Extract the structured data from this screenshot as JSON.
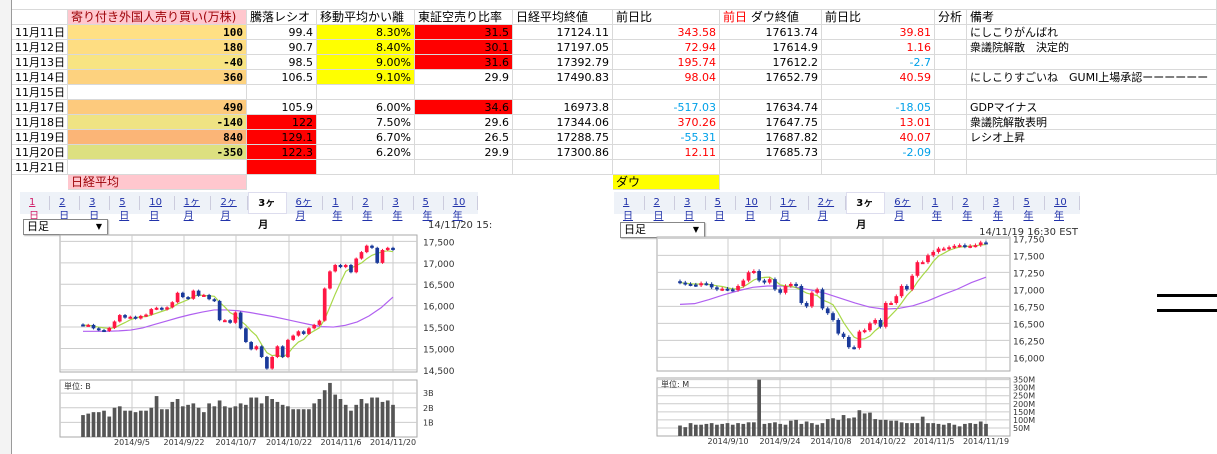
{
  "colors": {
    "pos": "#ff0000",
    "neg": "#00a0e8",
    "pink": "#ffc7ce",
    "pink_text": "#9c0006",
    "yellow": "#ffff00",
    "red": "#ff0000",
    "up_candle": "#ff1744",
    "down_candle": "#1a3a9a",
    "ma_short": "#a8d848",
    "ma_long": "#b060f0",
    "volume": "#555555"
  },
  "headers": {
    "foreign": "寄り付き外国人売り買い(万株)",
    "ratio": "騰落レシオ",
    "ma_dev": "移動平均かい離",
    "short_ratio": "東証空売り比率",
    "nikkei": "日経平均終値",
    "nikkei_chg": "前日比",
    "dow_prefix": "前日",
    "dow": "ダウ終値",
    "dow_chg": "前日比",
    "analysis": "分析",
    "note": "備考"
  },
  "rows": [
    {
      "date": "11月11日",
      "foreign": "100",
      "ratio": "99.4",
      "ma_dev": "8.30%",
      "short_ratio": "31.5",
      "nikkei": "17124.11",
      "nikkei_chg": "343.58",
      "dow": "17613.74",
      "dow_chg": "39.81",
      "note": "にしこりがんばれ",
      "bg": {
        "foreign": "#ffe084",
        "ma_dev": "#ffff00",
        "short_ratio": "#ff0000"
      }
    },
    {
      "date": "11月12日",
      "foreign": "180",
      "ratio": "90.7",
      "ma_dev": "8.40%",
      "short_ratio": "30.1",
      "nikkei": "17197.05",
      "nikkei_chg": "72.94",
      "dow": "17614.9",
      "dow_chg": "1.16",
      "note": "衆議院解散　決定的",
      "bg": {
        "foreign": "#fedd82",
        "ma_dev": "#ffff00",
        "short_ratio": "#ff0000"
      }
    },
    {
      "date": "11月13日",
      "foreign": "-40",
      "ratio": "98.5",
      "ma_dev": "9.00%",
      "short_ratio": "31.6",
      "nikkei": "17392.79",
      "nikkei_chg": "195.74",
      "dow": "17612.2",
      "dow_chg": "-2.7",
      "note": "",
      "bg": {
        "foreign": "#f8e482",
        "ma_dev": "#ffff00",
        "short_ratio": "#ff0000"
      }
    },
    {
      "date": "11月14日",
      "foreign": "360",
      "ratio": "106.5",
      "ma_dev": "9.10%",
      "short_ratio": "29.9",
      "nikkei": "17490.83",
      "nikkei_chg": "98.04",
      "dow": "17652.79",
      "dow_chg": "40.59",
      "note": "にしこりすごいね　GUMI上場承認ーーーーーー",
      "bg": {
        "foreign": "#fdd27f",
        "ma_dev": "#ffff00"
      }
    },
    {
      "date": "11月15日",
      "foreign": "",
      "ratio": "",
      "ma_dev": "",
      "short_ratio": "",
      "nikkei": "",
      "nikkei_chg": "",
      "dow": "",
      "dow_chg": "",
      "note": "",
      "bg": {}
    },
    {
      "date": "11月17日",
      "foreign": "490",
      "ratio": "105.9",
      "ma_dev": "6.00%",
      "short_ratio": "34.6",
      "nikkei": "16973.8",
      "nikkei_chg": "-517.03",
      "dow": "17634.74",
      "dow_chg": "-18.05",
      "note": "GDPマイナス",
      "bg": {
        "foreign": "#fdca7d",
        "short_ratio": "#ff0000"
      }
    },
    {
      "date": "11月18日",
      "foreign": "-140",
      "ratio": "122",
      "ma_dev": "7.50%",
      "short_ratio": "29.6",
      "nikkei": "17344.06",
      "nikkei_chg": "370.26",
      "dow": "17647.75",
      "dow_chg": "13.01",
      "note": "衆議院解散表明",
      "bg": {
        "foreign": "#efe383",
        "ratio": "#ff0000"
      }
    },
    {
      "date": "11月19日",
      "foreign": "840",
      "ratio": "129.1",
      "ma_dev": "6.70%",
      "short_ratio": "26.5",
      "nikkei": "17288.75",
      "nikkei_chg": "-55.31",
      "dow": "17687.82",
      "dow_chg": "40.07",
      "note": "レシオ上昇",
      "bg": {
        "foreign": "#fbb577",
        "ratio": "#ff0000"
      }
    },
    {
      "date": "11月20日",
      "foreign": "-350",
      "ratio": "122.3",
      "ma_dev": "6.20%",
      "short_ratio": "29.9",
      "nikkei": "17300.86",
      "nikkei_chg": "12.11",
      "dow": "17685.73",
      "dow_chg": "-2.09",
      "note": "",
      "bg": {
        "foreign": "#dde080",
        "ratio": "#ff0000"
      }
    },
    {
      "date": "11月21日",
      "foreign": "",
      "ratio": "",
      "ma_dev": "",
      "short_ratio": "",
      "nikkei": "",
      "nikkei_chg": "",
      "dow": "",
      "dow_chg": "",
      "note": "",
      "bg": {
        "ratio": "#ff0000"
      }
    }
  ],
  "section_labels": {
    "nikkei": "日経平均",
    "dow": "ダウ"
  },
  "period_tabs": [
    "1日",
    "2日",
    "3日",
    "5日",
    "10日",
    "1ヶ月",
    "2ヶ月",
    "3ヶ月",
    "6ヶ月",
    "1年",
    "2年",
    "3年",
    "5年",
    "10年"
  ],
  "active_tab": "3ヶ月",
  "chart_data": [
    {
      "type": "candlestick",
      "name": "nikkei",
      "select_value": "日足",
      "timestamp": "14/11/20 15:",
      "volume_unit_label": "単位: B",
      "y_ticks": [
        "17,500",
        "17,000",
        "16,500",
        "16,000",
        "15,500",
        "15,000",
        "14,500"
      ],
      "y_tick_values": [
        17500,
        17000,
        16500,
        16000,
        15500,
        15000,
        14500
      ],
      "ylim": [
        14450,
        17650
      ],
      "vol_ticks": [
        "3B",
        "2B",
        "1B"
      ],
      "vol_tick_values": [
        3,
        2,
        1
      ],
      "vol_lim": [
        0,
        3.9
      ],
      "x_ticks": [
        "2014/9/5",
        "2014/9/22",
        "2014/10/7",
        "2014/10/22",
        "2014/11/6",
        "2014/11/20"
      ],
      "closes": [
        15540,
        15550,
        15470,
        15430,
        15410,
        15480,
        15630,
        15780,
        15720,
        15740,
        15700,
        15760,
        15790,
        15920,
        15950,
        15910,
        15960,
        16080,
        16300,
        16200,
        16160,
        16350,
        16230,
        16250,
        16150,
        16110,
        15660,
        15660,
        15600,
        15840,
        15470,
        15150,
        14980,
        15050,
        14800,
        14530,
        14800,
        15050,
        14800,
        15200,
        15300,
        15400,
        15340,
        15470,
        15550,
        15650,
        16400,
        16800,
        16950,
        16900,
        16950,
        16780,
        17100,
        17250,
        17400,
        17350,
        17000,
        17300,
        17350,
        17300
      ],
      "ma_long": [
        15400,
        15400,
        15400,
        15410,
        15430,
        15480,
        15560,
        15640,
        15720,
        15790,
        15850,
        15900,
        15900,
        15880,
        15840,
        15790,
        15740,
        15680,
        15620,
        15560,
        15510,
        15500,
        15540,
        15620,
        15760,
        15950,
        16200
      ],
      "volume": [
        1.5,
        1.6,
        1.7,
        1.7,
        1.8,
        1.4,
        2.0,
        2.1,
        1.8,
        1.8,
        1.7,
        1.8,
        1.8,
        2.0,
        2.8,
        1.9,
        1.9,
        2.4,
        2.6,
        2.1,
        2.2,
        2.3,
        2.0,
        1.7,
        2.3,
        2.1,
        2.5,
        2.1,
        2.0,
        2.1,
        2.3,
        2.2,
        2.7,
        2.7,
        2.3,
        2.8,
        2.6,
        2.4,
        2.2,
        2.1,
        1.9,
        1.9,
        1.9,
        1.9,
        2.3,
        2.6,
        3.2,
        3.7,
        2.9,
        2.6,
        2.2,
        1.8,
        2.2,
        2.6,
        2.3,
        2.7,
        2.7,
        2.4,
        2.5,
        2.2
      ]
    },
    {
      "type": "candlestick",
      "name": "dow",
      "select_value": "日足",
      "timestamp": "14/11/19 16:30 EST",
      "volume_unit_label": "単位: M",
      "y_ticks": [
        "17,750",
        "17,500",
        "17,250",
        "17,000",
        "16,750",
        "16,500",
        "16,250",
        "16,000"
      ],
      "y_tick_values": [
        17750,
        17500,
        17250,
        17000,
        16750,
        16500,
        16250,
        16000
      ],
      "ylim": [
        15800,
        17770
      ],
      "vol_ticks": [
        "350M",
        "300M",
        "250M",
        "200M",
        "150M",
        "100M",
        "50M"
      ],
      "vol_tick_values": [
        350,
        300,
        250,
        200,
        150,
        100,
        50
      ],
      "vol_lim": [
        0,
        360
      ],
      "x_ticks": [
        "2014/9/10",
        "2014/9/24",
        "2014/10/8",
        "2014/10/22",
        "2014/11/5",
        "2014/11/19"
      ],
      "closes": [
        17100,
        17080,
        17070,
        17060,
        17090,
        17080,
        17030,
        17000,
        17010,
        17000,
        16990,
        17050,
        17130,
        17250,
        17270,
        17130,
        17100,
        17150,
        17000,
        16950,
        17050,
        17080,
        17050,
        16800,
        16750,
        16950,
        17000,
        16720,
        16650,
        16550,
        16350,
        16300,
        16150,
        16140,
        16380,
        16400,
        16500,
        16550,
        16450,
        16800,
        16800,
        16900,
        17050,
        17000,
        17200,
        17400,
        17400,
        17500,
        17550,
        17600,
        17600,
        17620,
        17640,
        17650,
        17630,
        17640,
        17650,
        17690,
        17685
      ],
      "ma_long": [
        16780,
        16790,
        16850,
        16920,
        16980,
        17030,
        17050,
        17050,
        17030,
        16990,
        16940,
        16870,
        16800,
        16740,
        16710,
        16720,
        16760,
        16830,
        16920,
        17000,
        17100,
        17180
      ],
      "volume": [
        65,
        55,
        80,
        70,
        70,
        75,
        80,
        70,
        75,
        80,
        70,
        80,
        75,
        85,
        85,
        350,
        75,
        80,
        85,
        75,
        70,
        95,
        100,
        75,
        90,
        80,
        70,
        80,
        105,
        110,
        100,
        130,
        110,
        115,
        160,
        140,
        145,
        105,
        100,
        100,
        95,
        95,
        85,
        80,
        80,
        80,
        120,
        80,
        80,
        75,
        70,
        80,
        70,
        60,
        75,
        80,
        75,
        90,
        75
      ]
    }
  ]
}
